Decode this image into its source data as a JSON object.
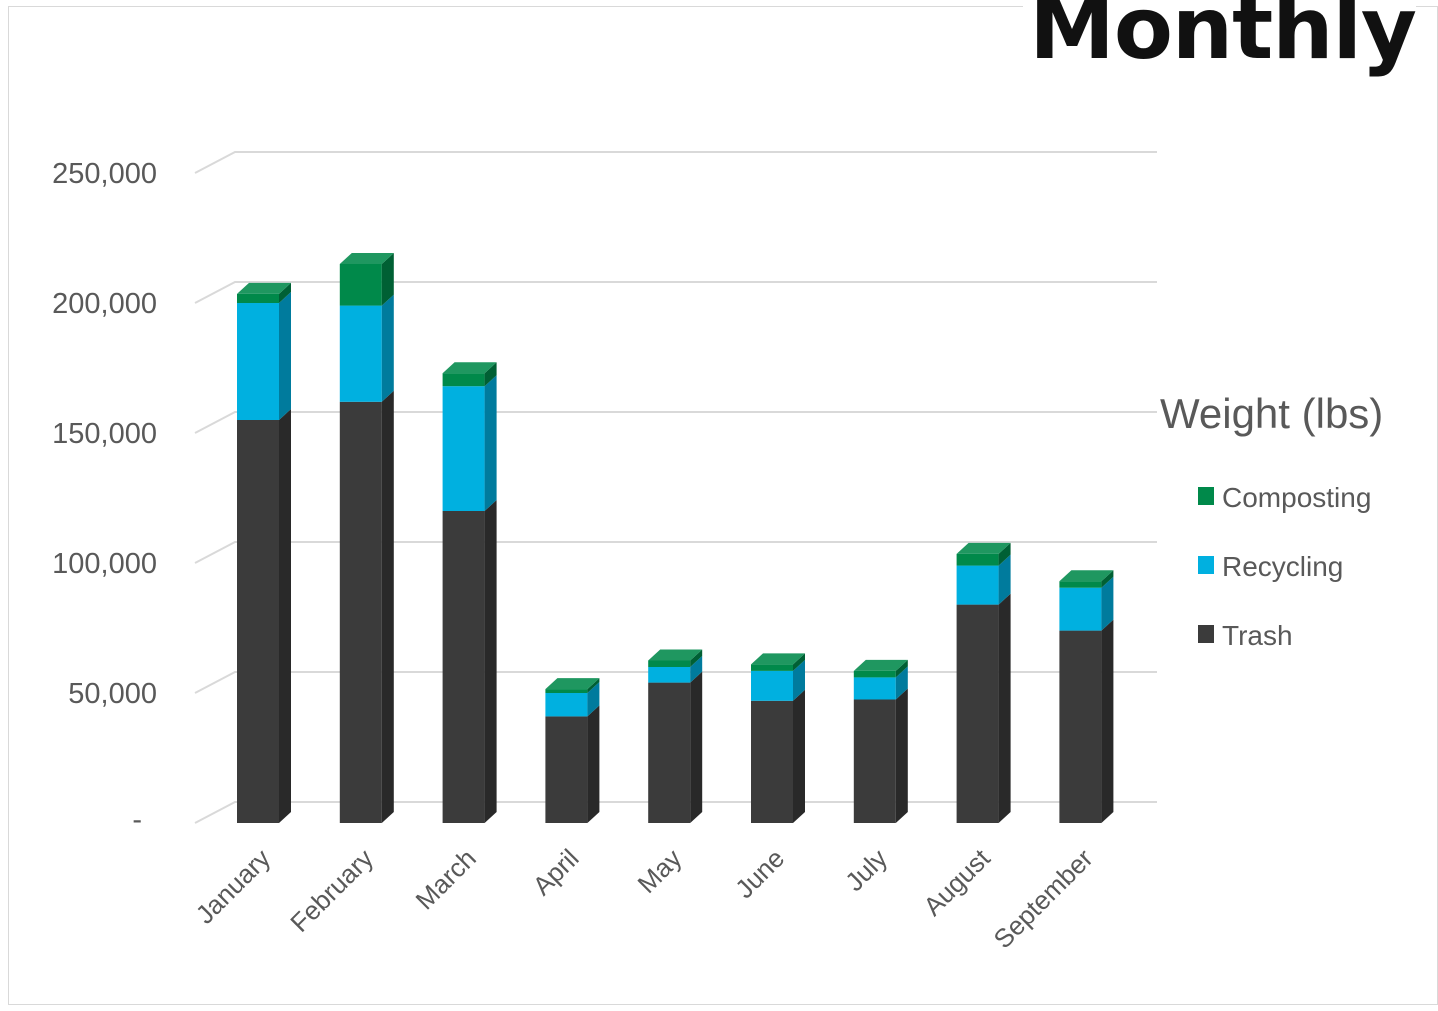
{
  "header": {
    "title": "Monthly"
  },
  "chart_data": {
    "type": "bar",
    "stacked": true,
    "style": "3d-column",
    "categories": [
      "January",
      "February",
      "March",
      "April",
      "May",
      "June",
      "July",
      "August",
      "September"
    ],
    "series": [
      {
        "name": "Trash",
        "color": "#3b3b3b",
        "values": [
          155000,
          162000,
          120000,
          41000,
          54000,
          47000,
          47500,
          84000,
          74000
        ]
      },
      {
        "name": "Recycling",
        "color": "#00b0e0",
        "values": [
          45000,
          37000,
          48000,
          9000,
          6000,
          11500,
          8500,
          15000,
          16500
        ]
      },
      {
        "name": "Composting",
        "color": "#00894a",
        "values": [
          3500,
          16000,
          5000,
          1500,
          2500,
          2500,
          2500,
          4500,
          2500
        ]
      }
    ],
    "legend_title": "Weight (lbs)",
    "legend_position": "right",
    "legend_order": [
      "Composting",
      "Recycling",
      "Trash"
    ],
    "y_ticks": [
      {
        "value": 0,
        "label": "-"
      },
      {
        "value": 50000,
        "label": "50,000"
      },
      {
        "value": 100000,
        "label": "100,000"
      },
      {
        "value": 150000,
        "label": "150,000"
      },
      {
        "value": 200000,
        "label": "200,000"
      },
      {
        "value": 250000,
        "label": "250,000"
      }
    ],
    "ylim": [
      0,
      250000
    ],
    "grid": true,
    "xlabel": "",
    "ylabel": ""
  }
}
